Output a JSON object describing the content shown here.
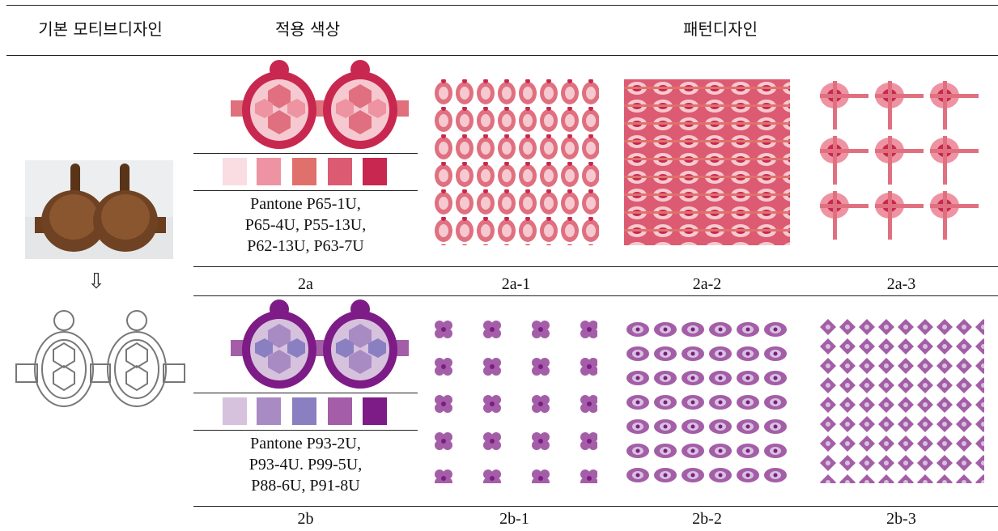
{
  "header": {
    "col_motif": "기본 모티브디자인",
    "col_color": "적용 색상",
    "col_pattern": "패턴디자인"
  },
  "arrow": "⇩",
  "rows": [
    {
      "id": "2a",
      "label": "2a",
      "pantone": [
        "Pantone P65-1U,",
        "P65-4U, P55-13U,",
        "P62-13U, P63-7U"
      ],
      "swatches": [
        "#f9dde2",
        "#ee93a2",
        "#e0706b",
        "#dc5b72",
        "#c8284f"
      ],
      "patterns": [
        "2a-1",
        "2a-2",
        "2a-3"
      ],
      "colors": {
        "shell": "#c8284f",
        "mid": "#e0707f",
        "light": "#f5c9cf",
        "bg": "#ffffff"
      }
    },
    {
      "id": "2b",
      "label": "2b",
      "pantone": [
        "Pantone P93-2U,",
        "P93-4U. P99-5U,",
        "P88-6U, P91-8U"
      ],
      "swatches": [
        "#d6c2dd",
        "#a98bc4",
        "#8a7fc1",
        "#a45ea7",
        "#7d1c86"
      ],
      "patterns": [
        "2b-1",
        "2b-2",
        "2b-3"
      ],
      "colors": {
        "shell": "#7d1c86",
        "mid": "#a45ea7",
        "light": "#d6c2dd",
        "bg": "#ffffff"
      }
    }
  ]
}
